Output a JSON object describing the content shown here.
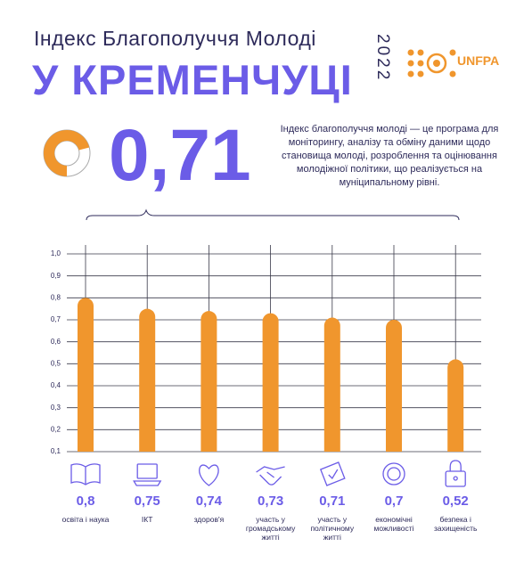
{
  "header": {
    "title": "Індекс Благополуччя Молоді",
    "city": "У КРЕМЕНЧУЦІ",
    "year": "2022",
    "logo": "UNFPA"
  },
  "index": {
    "value": 0.71,
    "label": "0,71"
  },
  "description": "Індекс благополуччя молоді — це програма для моніторингу, аналізу та обміну даними щодо становища молоді, розроблення та оцінювання молодіжної політики, що реалізується на муніципальному рівні.",
  "chart_data": {
    "type": "bar",
    "categories": [
      "освіта і наука",
      "ІКТ",
      "здоров'я",
      "участь у громадському житті",
      "участь у політичному житті",
      "економічні можливості",
      "безпека і захищеність"
    ],
    "values": [
      0.8,
      0.75,
      0.74,
      0.73,
      0.71,
      0.7,
      0.52
    ],
    "value_labels": [
      "0,8",
      "0,75",
      "0,74",
      "0,73",
      "0,71",
      "0,7",
      "0,52"
    ],
    "color": "#f0962d",
    "ylim": [
      0.1,
      1.0
    ],
    "yticks": [
      {
        "value": 0.1,
        "label": "0,1"
      },
      {
        "value": 0.2,
        "label": "0,2"
      },
      {
        "value": 0.3,
        "label": "0,3"
      },
      {
        "value": 0.4,
        "label": "0,4"
      },
      {
        "value": 0.5,
        "label": "0,5"
      },
      {
        "value": 0.6,
        "label": "0,6"
      },
      {
        "value": 0.7,
        "label": "0,7"
      },
      {
        "value": 0.8,
        "label": "0,8"
      },
      {
        "value": 0.9,
        "label": "0,9"
      },
      {
        "value": 1.0,
        "label": "1,0"
      }
    ],
    "grid": true
  }
}
